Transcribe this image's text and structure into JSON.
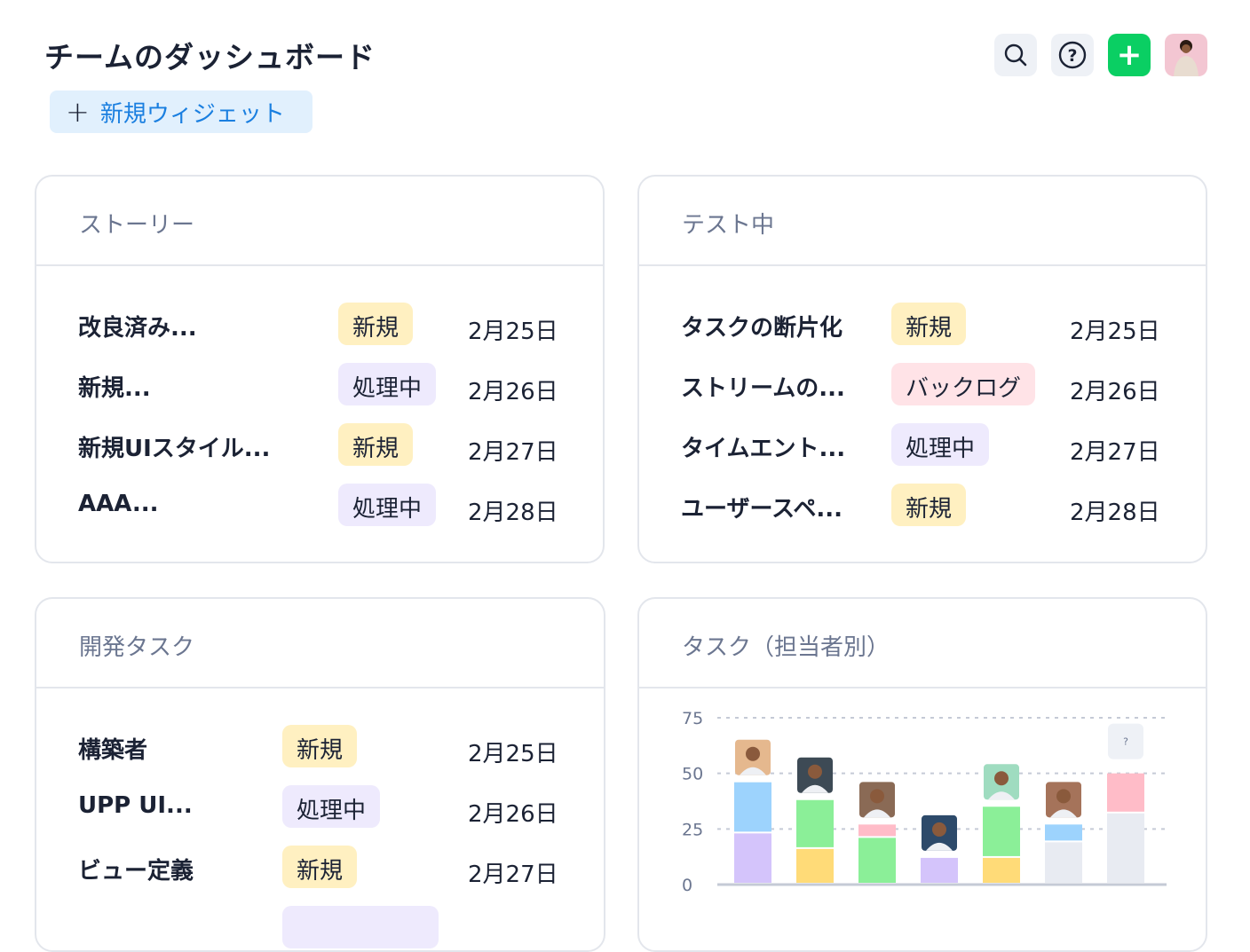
{
  "header": {
    "title": "チームのダッシュボード",
    "new_widget_label": "新規ウィジェット",
    "icons": [
      "search-icon",
      "help-icon",
      "plus-icon",
      "user-avatar"
    ]
  },
  "status_colors": {
    "新規": "#fff0c1",
    "処理中": "#eeeafd",
    "バックログ": "#ffe3e7"
  },
  "cards": [
    {
      "title": "ストーリー",
      "rows": [
        {
          "name": "改良済み...",
          "status": "新規",
          "date": "2月25日"
        },
        {
          "name": "新規...",
          "status": "処理中",
          "date": "2月26日"
        },
        {
          "name": "新規UIスタイル...",
          "status": "新規",
          "date": "2月27日"
        },
        {
          "name": "AAA...",
          "status": "処理中",
          "date": "2月28日"
        }
      ]
    },
    {
      "title": "テスト中",
      "rows": [
        {
          "name": "タスクの断片化",
          "status": "新規",
          "date": "2月25日"
        },
        {
          "name": "ストリームの...",
          "status": "バックログ",
          "date": "2月26日"
        },
        {
          "name": "タイムエント...",
          "status": "処理中",
          "date": "2月27日"
        },
        {
          "name": "ユーザースペ...",
          "status": "新規",
          "date": "2月28日"
        }
      ]
    },
    {
      "title": "開発タスク",
      "rows": [
        {
          "name": "構築者",
          "status": "新規",
          "date": "2月25日"
        },
        {
          "name": "UPP UI...",
          "status": "処理中",
          "date": "2月26日"
        },
        {
          "name": "ビュー定義",
          "status": "新規",
          "date": "2月27日"
        }
      ]
    }
  ],
  "chart_data": {
    "type": "bar",
    "stacked": true,
    "title": "タスク（担当者別）",
    "ylim": [
      0,
      75
    ],
    "yticks": [
      "0",
      "25",
      "50",
      "75"
    ],
    "grid": true,
    "categories": [
      "assignee-1",
      "assignee-2",
      "assignee-3",
      "assignee-4",
      "assignee-5",
      "assignee-6",
      "unassigned"
    ],
    "unassigned_label": "?",
    "series": [
      {
        "color": "#d4c4fb",
        "values": [
          23,
          0,
          0,
          12,
          0,
          0,
          0
        ]
      },
      {
        "color": "#ffdb78",
        "values": [
          0,
          16,
          0,
          0,
          12,
          0,
          0
        ]
      },
      {
        "color": "#e8ebf2",
        "values": [
          0,
          0,
          0,
          0,
          0,
          19,
          32
        ]
      },
      {
        "color": "#8bef98",
        "values": [
          0,
          22,
          21,
          0,
          23,
          0,
          0
        ]
      },
      {
        "color": "#9dd3fd",
        "values": [
          23,
          0,
          0,
          0,
          0,
          8,
          0
        ]
      },
      {
        "color": "#ffbcc8",
        "values": [
          0,
          0,
          6,
          6,
          0,
          0,
          18
        ]
      }
    ],
    "stack_order": [
      [
        0,
        4
      ],
      [
        1,
        3
      ],
      [
        3,
        5
      ],
      [
        0,
        1
      ],
      [
        1,
        3
      ],
      [
        2,
        4
      ],
      [
        2,
        5
      ]
    ],
    "avatar_colors": [
      "#e5b88e",
      "#3d4a55",
      "#8a6a55",
      "#2d4a6a",
      "#9fdcc0",
      "#a5735a"
    ]
  }
}
